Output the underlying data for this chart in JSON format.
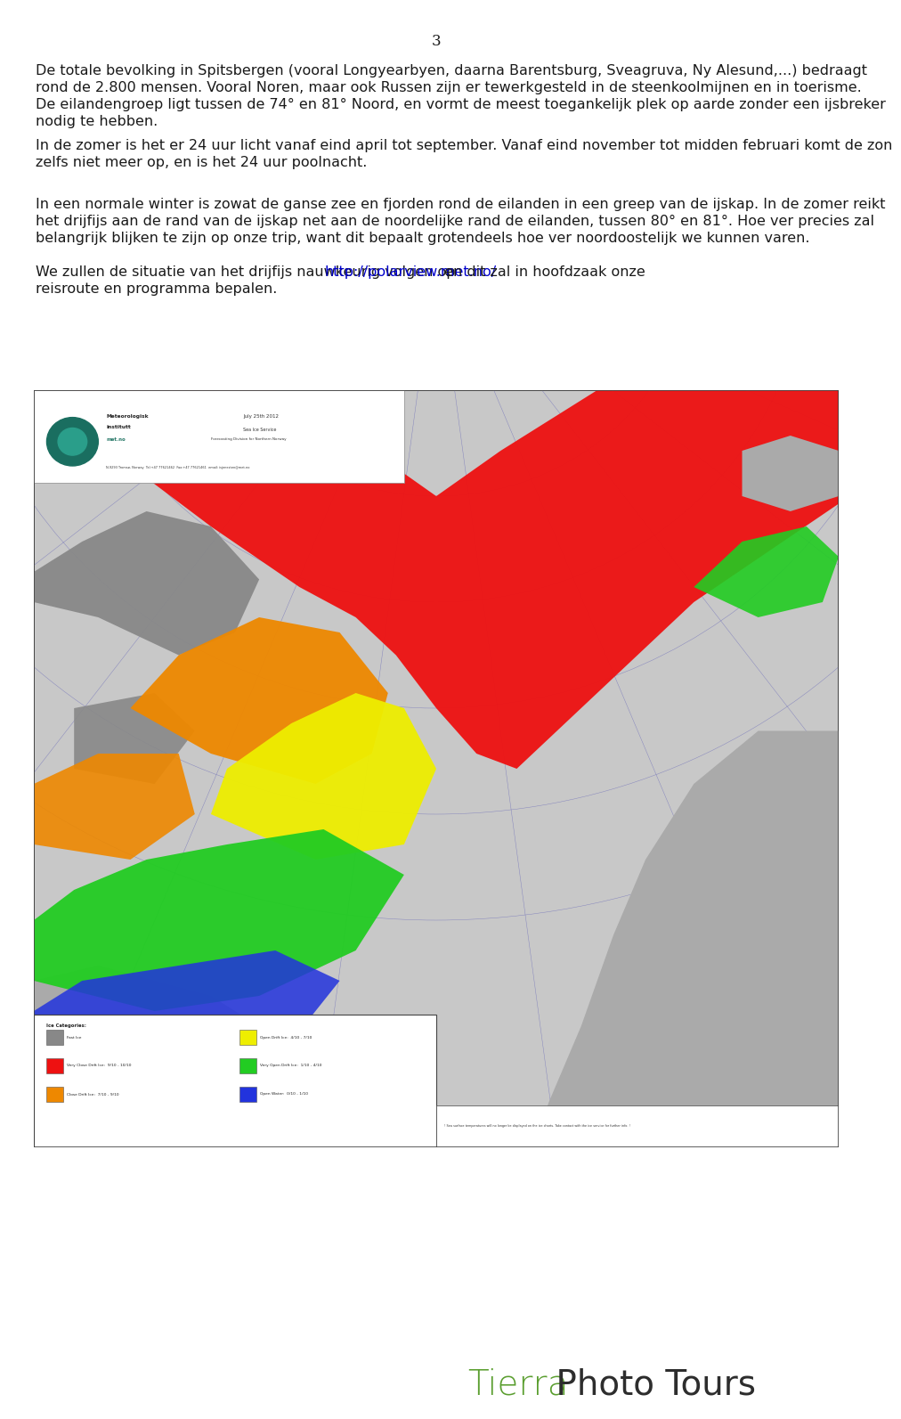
{
  "page_number": "3",
  "background_color": "#ffffff",
  "text_color": "#1a1a1a",
  "link_color": "#0000cc",
  "tierra_color": "#5a9e2f",
  "photo_tours_color": "#2d2d2d",
  "para1": "De totale bevolking in Spitsbergen (vooral Longyearbyen, daarna Barentsburg, Sveagruva, Ny Alesund,...) bedraagt\nrond de 2.800 mensen. Vooral Noren, maar ook Russen zijn er tewerkgesteld in de steenkoolmijnen en in toerisme.\nDe eilandengroep ligt tussen de 74° en 81° Noord, en vormt de meest toegankelijk plek op aarde zonder een ijsbreker\nnodig te hebben.",
  "para2": "In de zomer is het er 24 uur licht vanaf eind april tot september. Vanaf eind november tot midden februari komt de zon\nzelfs niet meer op, en is het 24 uur poolnacht.",
  "para3": "In een normale winter is zowat de ganse zee en fjorden rond de eilanden in een greep van de ijskap. In de zomer reikt\nhet drijfijs aan de rand van de ijskap net aan de noordelijke rand de eilanden, tussen 80° en 81°. Hoe ver precies zal\nbelangrijk blijken te zijn op onze trip, want dit bepaalt grotendeels hoe ver noordoostelijk we kunnen varen.",
  "para4_before": "We zullen de situatie van het drijfijs nauwkeurig volgen op ",
  "para4_link": "http://polarview.met.no/",
  "para4_after1": " en dit zal in hoofdzaak onze",
  "para4_after2": "reisroute en programma bepalen.",
  "font_size": 11.5,
  "page_num_font_size": 12,
  "tierra_font_size": 28
}
